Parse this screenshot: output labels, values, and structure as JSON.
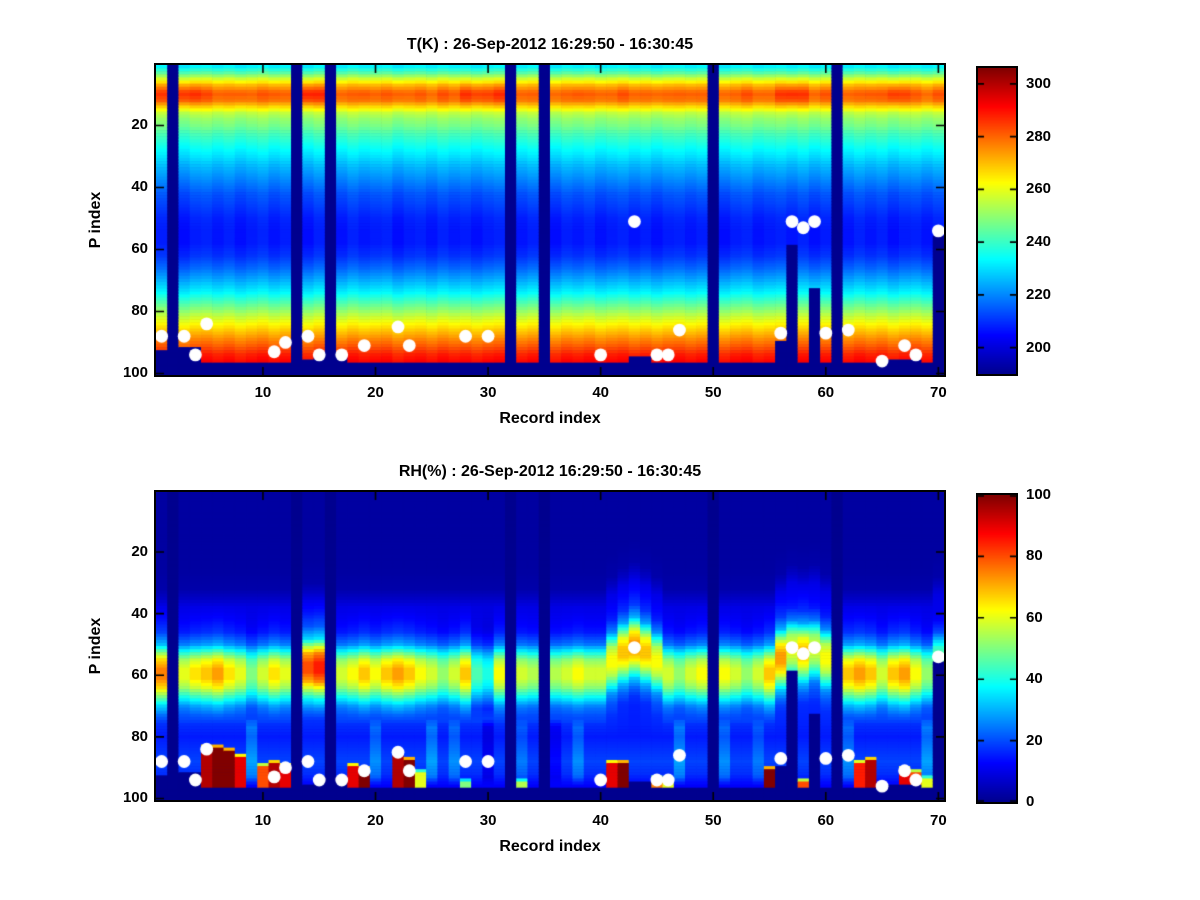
{
  "figure": {
    "background": "#ffffff",
    "dot_color": "#ffffff",
    "axis_color": "#000000"
  },
  "chart_data": [
    {
      "type": "heatmap",
      "kind": "temperature",
      "title": "T(K) : 26-Sep-2012 16:29:50 - 16:30:45",
      "xlabel": "Record index",
      "ylabel": "P index",
      "x_ticks": [
        10,
        20,
        30,
        40,
        50,
        60,
        70
      ],
      "y_ticks": [
        20,
        40,
        60,
        80,
        100
      ],
      "x_range": [
        0.5,
        70.5
      ],
      "y_range": [
        0.5,
        100.5
      ],
      "y_inverted": true,
      "n_records": 70,
      "n_levels": 100,
      "caxis": [
        190,
        306
      ],
      "colorbar_ticks": [
        200,
        220,
        240,
        260,
        280,
        300
      ],
      "colormap": "jet",
      "profile": [
        [
          1,
          232
        ],
        [
          3,
          243
        ],
        [
          5,
          257
        ],
        [
          7,
          270
        ],
        [
          9,
          278
        ],
        [
          10,
          280
        ],
        [
          12,
          277
        ],
        [
          14,
          266
        ],
        [
          16,
          255
        ],
        [
          18,
          250
        ],
        [
          20,
          247
        ],
        [
          23,
          241
        ],
        [
          26,
          236
        ],
        [
          30,
          230
        ],
        [
          34,
          224
        ],
        [
          38,
          219
        ],
        [
          42,
          214
        ],
        [
          46,
          211
        ],
        [
          50,
          208
        ],
        [
          54,
          207
        ],
        [
          58,
          207
        ],
        [
          62,
          210
        ],
        [
          66,
          216
        ],
        [
          70,
          224
        ],
        [
          74,
          233
        ],
        [
          78,
          245
        ],
        [
          82,
          257
        ],
        [
          86,
          268
        ],
        [
          89,
          276
        ],
        [
          92,
          283
        ],
        [
          94,
          288
        ],
        [
          96,
          291
        ],
        [
          100,
          294
        ]
      ],
      "col_offset": [
        0.8,
        0,
        -1.5,
        0.6,
        1.2,
        -0.4,
        0.9,
        -1.1,
        0.3,
        1.5,
        -0.6,
        0.7,
        0,
        -1.2,
        1.0,
        0,
        -0.8,
        1.3,
        -0.3,
        0.5,
        1.1,
        -1.4,
        0.2,
        0.9,
        -0.7,
        1.2,
        -0.2,
        0.6,
        -1.0,
        0.4,
        1.3,
        0,
        -0.5,
        1.0,
        0,
        -1.3,
        0.8,
        -0.2,
        1.1,
        -0.9,
        0.3,
        1.2,
        -0.6,
        0.7,
        -1.1,
        0.5,
        1.0,
        -0.4,
        0.8,
        0,
        -1.2,
        0.6,
        1.4,
        -0.8,
        0.2,
        1.0,
        -0.5,
        1.2,
        -1.0,
        0.6,
        0,
        -0.7,
        1.1,
        -0.3,
        0.9,
        -1.2,
        0.4,
        1.0,
        -0.6,
        0.8
      ],
      "band_p": 10,
      "band_sigma": 2.5,
      "band_boost": [
        5,
        0,
        7,
        6,
        3,
        1,
        0,
        2,
        0,
        1,
        2,
        0,
        0,
        9,
        7,
        0,
        1,
        0,
        2,
        0,
        1,
        2,
        0,
        1,
        0,
        2,
        1,
        6,
        5,
        4,
        6,
        0,
        1,
        0,
        0,
        1,
        0,
        2,
        0,
        1,
        0,
        2,
        1,
        0,
        1,
        0,
        0,
        1,
        0,
        0,
        1,
        0,
        2,
        1,
        0,
        5,
        7,
        5,
        1,
        2,
        0,
        1,
        0,
        2,
        1,
        6,
        4,
        1,
        0,
        2
      ],
      "missing_records": [
        2,
        13,
        16,
        32,
        35,
        50,
        61
      ],
      "surface_top_default": 97,
      "surface_top": {
        "1": 93,
        "3": 92,
        "4": 92,
        "14": 96,
        "15": 94,
        "17": 95,
        "43": 95,
        "44": 95,
        "56": 90,
        "57": 59,
        "59": 73,
        "66": 96,
        "67": 96,
        "68": 96,
        "70": 56
      },
      "dots": [
        [
          1,
          88
        ],
        [
          3,
          88
        ],
        [
          4,
          94
        ],
        [
          5,
          84
        ],
        [
          11,
          93
        ],
        [
          12,
          90
        ],
        [
          14,
          88
        ],
        [
          15,
          94
        ],
        [
          17,
          94
        ],
        [
          19,
          91
        ],
        [
          22,
          85
        ],
        [
          23,
          91
        ],
        [
          28,
          88
        ],
        [
          30,
          88
        ],
        [
          40,
          94
        ],
        [
          43,
          51
        ],
        [
          45,
          94
        ],
        [
          46,
          94
        ],
        [
          47,
          86
        ],
        [
          56,
          87
        ],
        [
          57,
          51
        ],
        [
          58,
          53
        ],
        [
          59,
          51
        ],
        [
          60,
          87
        ],
        [
          62,
          86
        ],
        [
          65,
          96
        ],
        [
          67,
          91
        ],
        [
          68,
          94
        ],
        [
          70,
          54
        ]
      ]
    },
    {
      "type": "heatmap",
      "kind": "humidity",
      "title": "RH(%) : 26-Sep-2012 16:29:50 - 16:30:45",
      "xlabel": "Record index",
      "ylabel": "P index",
      "x_ticks": [
        10,
        20,
        30,
        40,
        50,
        60,
        70
      ],
      "y_ticks": [
        20,
        40,
        60,
        80,
        100
      ],
      "x_range": [
        0.5,
        70.5
      ],
      "y_range": [
        0.5,
        100.5
      ],
      "y_inverted": true,
      "n_records": 70,
      "n_levels": 100,
      "caxis": [
        0,
        100
      ],
      "colorbar_ticks": [
        0,
        20,
        40,
        60,
        80,
        100
      ],
      "colormap": "jet",
      "profile": [
        [
          1,
          2
        ],
        [
          25,
          2
        ],
        [
          32,
          3
        ],
        [
          35,
          6
        ],
        [
          38,
          10
        ],
        [
          42,
          13
        ],
        [
          46,
          17
        ],
        [
          50,
          28
        ],
        [
          53,
          48
        ],
        [
          55,
          60
        ],
        [
          58,
          68
        ],
        [
          61,
          68
        ],
        [
          64,
          60
        ],
        [
          67,
          45
        ],
        [
          70,
          30
        ],
        [
          73,
          22
        ],
        [
          76,
          17
        ],
        [
          80,
          15
        ],
        [
          84,
          17
        ],
        [
          88,
          19
        ],
        [
          92,
          17
        ],
        [
          96,
          12
        ],
        [
          100,
          8
        ]
      ],
      "band_peak_ref": 68,
      "band_peak": [
        75,
        0,
        60,
        65,
        68,
        72,
        65,
        60,
        50,
        58,
        65,
        60,
        0,
        80,
        85,
        0,
        58,
        62,
        68,
        62,
        68,
        72,
        68,
        62,
        58,
        52,
        58,
        68,
        45,
        40,
        62,
        0,
        58,
        55,
        0,
        55,
        58,
        62,
        58,
        58,
        62,
        68,
        72,
        68,
        62,
        58,
        52,
        58,
        62,
        0,
        62,
        58,
        52,
        58,
        68,
        72,
        60,
        68,
        58,
        62,
        0,
        68,
        72,
        68,
        58,
        68,
        72,
        62,
        52,
        48
      ],
      "band_center_default": 60,
      "band_center": {
        "14": 58,
        "15": 58,
        "41": 56,
        "42": 53,
        "43": 51,
        "44": 53,
        "45": 56,
        "56": 55,
        "57": 52,
        "58": 53,
        "59": 52,
        "60": 55,
        "70": 56
      },
      "below_scale": {
        "9": 1.5,
        "20": 1.4,
        "25": 1.5,
        "27": 1.4,
        "30": 0.6,
        "33": 1.3,
        "36": 0.7,
        "38": 1.4,
        "47": 1.5,
        "51": 1.4,
        "54": 1.3,
        "62": 1.4,
        "69": 1.5
      },
      "spikes": {
        "4": [
          93,
          90
        ],
        "5": [
          83,
          95
        ],
        "6": [
          83,
          100
        ],
        "7": [
          84,
          100
        ],
        "8": [
          86,
          90
        ],
        "10": [
          89,
          80
        ],
        "11": [
          88,
          95
        ],
        "12": [
          89,
          90
        ],
        "15": [
          95,
          70
        ],
        "17": [
          94,
          65
        ],
        "18": [
          89,
          90
        ],
        "19": [
          90,
          100
        ],
        "22": [
          85,
          95
        ],
        "23": [
          87,
          100
        ],
        "24": [
          91,
          60
        ],
        "28": [
          94,
          50
        ],
        "33": [
          94,
          55
        ],
        "41": [
          88,
          90
        ],
        "42": [
          88,
          100
        ],
        "44": [
          95,
          70
        ],
        "45": [
          93,
          75
        ],
        "46": [
          94,
          60
        ],
        "55": [
          90,
          100
        ],
        "58": [
          94,
          80
        ],
        "63": [
          88,
          85
        ],
        "64": [
          87,
          95
        ],
        "67": [
          90,
          90
        ],
        "68": [
          91,
          80
        ],
        "69": [
          93,
          60
        ]
      },
      "missing_records": [
        2,
        13,
        16,
        32,
        35,
        50,
        61
      ],
      "surface_top_default": 97,
      "surface_top": {
        "1": 93,
        "3": 92,
        "4": 92,
        "14": 96,
        "15": 94,
        "17": 95,
        "43": 95,
        "44": 95,
        "56": 90,
        "57": 59,
        "59": 73,
        "66": 96,
        "67": 96,
        "68": 96,
        "70": 56
      },
      "dots": [
        [
          1,
          88
        ],
        [
          3,
          88
        ],
        [
          4,
          94
        ],
        [
          5,
          84
        ],
        [
          11,
          93
        ],
        [
          12,
          90
        ],
        [
          14,
          88
        ],
        [
          15,
          94
        ],
        [
          17,
          94
        ],
        [
          19,
          91
        ],
        [
          22,
          85
        ],
        [
          23,
          91
        ],
        [
          28,
          88
        ],
        [
          30,
          88
        ],
        [
          40,
          94
        ],
        [
          43,
          51
        ],
        [
          45,
          94
        ],
        [
          46,
          94
        ],
        [
          47,
          86
        ],
        [
          56,
          87
        ],
        [
          57,
          51
        ],
        [
          58,
          53
        ],
        [
          59,
          51
        ],
        [
          60,
          87
        ],
        [
          62,
          86
        ],
        [
          65,
          96
        ],
        [
          67,
          91
        ],
        [
          68,
          94
        ],
        [
          70,
          54
        ]
      ]
    }
  ]
}
